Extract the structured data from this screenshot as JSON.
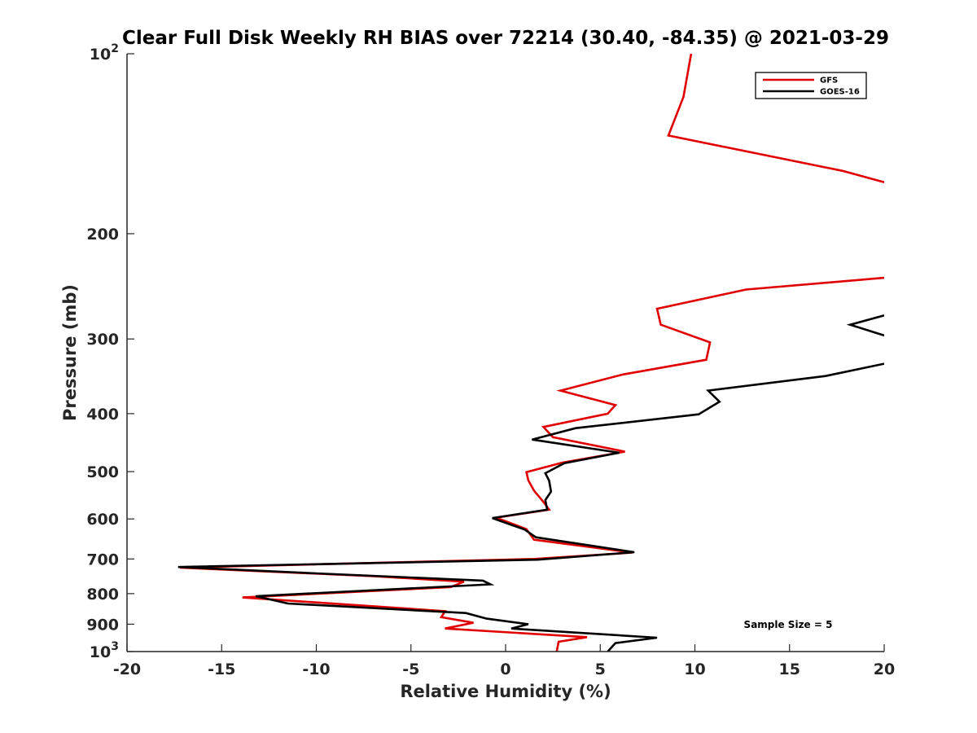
{
  "chart_data": {
    "type": "line",
    "title": "Clear Full Disk Weekly RH BIAS over 72214 (30.40, -84.35) @ 2021-03-29",
    "xlabel": "Relative Humidity (%)",
    "ylabel": "Pressure (mb)",
    "xlim": [
      -20,
      20
    ],
    "ylim": [
      100,
      1000
    ],
    "yscale": "log",
    "y_reversed": true,
    "x_ticks": [
      -20,
      -15,
      -10,
      -5,
      0,
      5,
      10,
      15,
      20
    ],
    "x_tick_labels": [
      "-20",
      "-15",
      "-10",
      "-5",
      "0",
      "5",
      "10",
      "15",
      "20"
    ],
    "y_ticks": [
      100,
      200,
      300,
      400,
      500,
      600,
      700,
      800,
      900,
      1000
    ],
    "y_tick_labels": [
      {
        "base": "10",
        "exp": "2"
      },
      {
        "text": "200"
      },
      {
        "text": "300"
      },
      {
        "text": "400"
      },
      {
        "text": "500"
      },
      {
        "text": "600"
      },
      {
        "text": "700"
      },
      {
        "text": "800"
      },
      {
        "text": "900"
      },
      {
        "base": "10",
        "exp": "3"
      }
    ],
    "legend_position": "top-right",
    "annotation": "Sample Size = 5",
    "series": [
      {
        "name": "GFS",
        "color": "#e00000",
        "segments": [
          [
            [
              9.8,
              100
            ],
            [
              9.4,
              118
            ],
            [
              8.6,
              137
            ],
            [
              17.8,
              157
            ],
            [
              20,
              164
            ]
          ],
          [
            [
              20,
              237
            ],
            [
              12.7,
              248
            ],
            [
              8,
              267
            ],
            [
              8.2,
              284
            ],
            [
              10.8,
              304
            ],
            [
              10.6,
              325
            ],
            [
              6.2,
              344
            ],
            [
              2.9,
              366
            ],
            [
              5.8,
              387
            ],
            [
              5.4,
              400
            ],
            [
              2,
              421
            ],
            [
              2.5,
              438
            ],
            [
              6.3,
              463
            ],
            [
              3,
              483
            ],
            [
              1.1,
              501
            ],
            [
              1.2,
              517
            ],
            [
              1.5,
              538
            ],
            [
              2,
              562
            ],
            [
              2.3,
              579
            ],
            [
              -0.5,
              597
            ],
            [
              1.1,
              624
            ],
            [
              1.5,
              650
            ],
            [
              6.7,
              683
            ],
            [
              1.5,
              700
            ],
            [
              -17.2,
              724
            ],
            [
              -7,
              748
            ],
            [
              -2.2,
              764
            ],
            [
              -2.9,
              780
            ],
            [
              -13.9,
              812
            ],
            [
              -3.2,
              856
            ],
            [
              -3.4,
              876
            ],
            [
              -1.7,
              895
            ],
            [
              -3.2,
              915
            ],
            [
              4.3,
              946
            ],
            [
              2.8,
              963
            ],
            [
              2.7,
              1000
            ]
          ]
        ]
      },
      {
        "name": "GOES-16",
        "color": "#000000",
        "segments": [
          [
            [
              20,
              274
            ],
            [
              18.2,
              284
            ],
            [
              20,
              296
            ]
          ],
          [
            [
              20,
              330
            ],
            [
              16.9,
              346
            ],
            [
              10.7,
              366
            ],
            [
              11.3,
              382
            ],
            [
              10.2,
              401
            ],
            [
              3.7,
              423
            ],
            [
              1.4,
              442
            ],
            [
              6,
              465
            ],
            [
              3.1,
              484
            ],
            [
              2.1,
              503
            ],
            [
              2.3,
              518
            ],
            [
              2.4,
              540
            ],
            [
              2.1,
              558
            ],
            [
              2.2,
              579
            ],
            [
              -0.7,
              598
            ],
            [
              1,
              625
            ],
            [
              1.6,
              644
            ],
            [
              6.8,
              682
            ],
            [
              1.7,
              702
            ],
            [
              -17.3,
              722
            ],
            [
              -10,
              740
            ],
            [
              -1.2,
              761
            ],
            [
              -0.8,
              772
            ],
            [
              -13.2,
              808
            ],
            [
              -11.5,
              831
            ],
            [
              -2.1,
              862
            ],
            [
              -1,
              881
            ],
            [
              1.2,
              900
            ],
            [
              0.3,
              915
            ],
            [
              8,
              948
            ],
            [
              5.8,
              968
            ],
            [
              5.4,
              1000
            ]
          ]
        ]
      }
    ]
  }
}
